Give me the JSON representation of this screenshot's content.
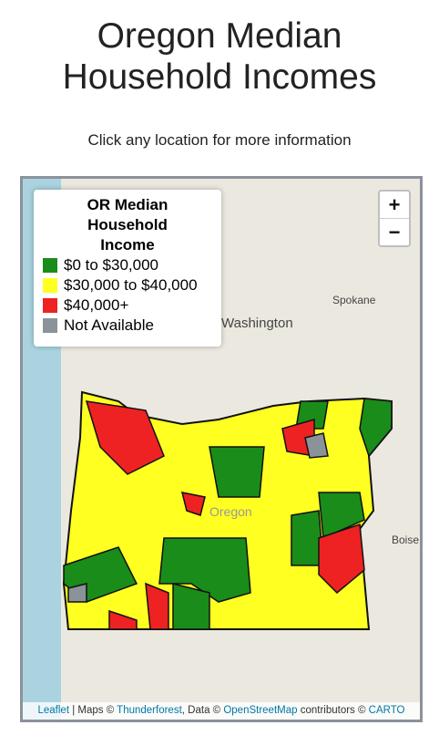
{
  "header": {
    "title_line1": "Oregon Median",
    "title_line2": "Household Incomes",
    "subtitle": "Click any location for more information"
  },
  "map": {
    "place_labels": [
      "Washington",
      "Spokane",
      "Oregon",
      "Boise"
    ],
    "zoom": {
      "in": "+",
      "out": "−"
    },
    "legend": {
      "title_lines": [
        "OR Median",
        "Household",
        "Income"
      ],
      "items": [
        {
          "label": "$0 to $30,000",
          "color": "#1a8c1a"
        },
        {
          "label": "$30,000 to $40,000",
          "color": "#ffff22"
        },
        {
          "label": "$40,000+",
          "color": "#ee2222"
        },
        {
          "label": "Not Available",
          "color": "#8a9399"
        }
      ]
    },
    "attribution": [
      {
        "text": "Leaflet",
        "link": true
      },
      {
        "text": " | Maps © ",
        "link": false
      },
      {
        "text": "Thunderforest",
        "link": true
      },
      {
        "text": ", Data © ",
        "link": false
      },
      {
        "text": "OpenStreetMap",
        "link": true
      },
      {
        "text": " contributors © ",
        "link": false
      },
      {
        "text": "CARTO",
        "link": true
      }
    ]
  }
}
